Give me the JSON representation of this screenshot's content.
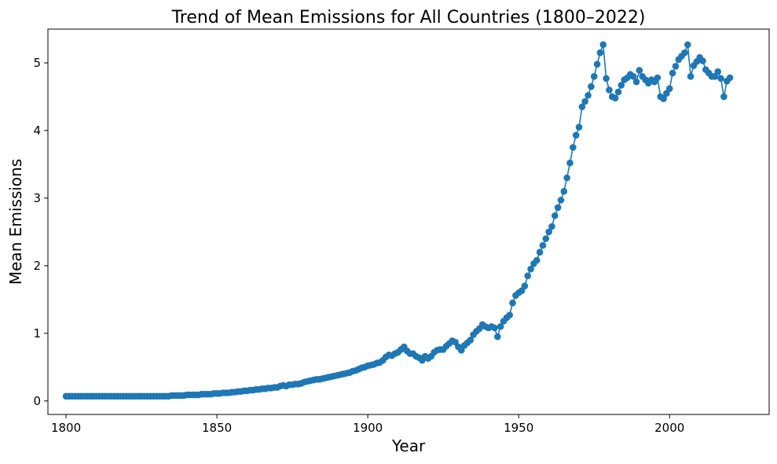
{
  "chart_data": {
    "type": "line",
    "title": "Trend of Mean Emissions for All Countries (1800–2022)",
    "xlabel": "Year",
    "ylabel": "Mean Emissions",
    "xlim": [
      1794,
      2033
    ],
    "ylim": [
      -0.2,
      5.5
    ],
    "xticks": [
      1800,
      1850,
      1900,
      1950,
      2000
    ],
    "yticks": [
      0,
      1,
      2,
      3,
      4,
      5
    ],
    "grid": false,
    "legend": "none",
    "color": "#1f77b4",
    "marker": "circle",
    "series": [
      {
        "x_start": 1800,
        "x_end": 2022,
        "values": [
          0.07,
          0.07,
          0.07,
          0.07,
          0.07,
          0.07,
          0.07,
          0.07,
          0.07,
          0.07,
          0.07,
          0.07,
          0.07,
          0.07,
          0.07,
          0.07,
          0.07,
          0.07,
          0.07,
          0.07,
          0.07,
          0.07,
          0.07,
          0.07,
          0.07,
          0.07,
          0.07,
          0.07,
          0.07,
          0.07,
          0.07,
          0.07,
          0.07,
          0.07,
          0.07,
          0.08,
          0.08,
          0.08,
          0.08,
          0.08,
          0.09,
          0.09,
          0.09,
          0.09,
          0.09,
          0.1,
          0.1,
          0.1,
          0.1,
          0.11,
          0.11,
          0.11,
          0.12,
          0.12,
          0.12,
          0.13,
          0.13,
          0.14,
          0.14,
          0.15,
          0.15,
          0.16,
          0.16,
          0.17,
          0.17,
          0.18,
          0.18,
          0.19,
          0.19,
          0.2,
          0.2,
          0.22,
          0.23,
          0.22,
          0.24,
          0.24,
          0.25,
          0.25,
          0.26,
          0.28,
          0.29,
          0.3,
          0.31,
          0.32,
          0.32,
          0.33,
          0.34,
          0.35,
          0.36,
          0.37,
          0.38,
          0.39,
          0.4,
          0.41,
          0.42,
          0.44,
          0.45,
          0.47,
          0.49,
          0.5,
          0.52,
          0.53,
          0.54,
          0.56,
          0.57,
          0.6,
          0.65,
          0.68,
          0.67,
          0.7,
          0.72,
          0.76,
          0.8,
          0.74,
          0.7,
          0.7,
          0.66,
          0.64,
          0.6,
          0.66,
          0.63,
          0.66,
          0.72,
          0.75,
          0.76,
          0.76,
          0.81,
          0.85,
          0.89,
          0.87,
          0.8,
          0.75,
          0.82,
          0.86,
          0.9,
          0.98,
          1.03,
          1.07,
          1.13,
          1.1,
          1.08,
          1.1,
          1.08,
          0.95,
          1.1,
          1.18,
          1.23,
          1.27,
          1.45,
          1.56,
          1.6,
          1.63,
          1.7,
          1.85,
          1.95,
          2.03,
          2.08,
          2.2,
          2.3,
          2.4,
          2.5,
          2.58,
          2.74,
          2.86,
          2.97,
          3.1,
          3.3,
          3.52,
          3.75,
          3.93,
          4.05,
          4.35,
          4.43,
          4.52,
          4.65,
          4.8,
          4.98,
          5.15,
          5.27,
          4.77,
          4.6,
          4.5,
          4.48,
          4.57,
          4.67,
          4.75,
          4.78,
          4.83,
          4.8,
          4.72,
          4.89,
          4.8,
          4.75,
          4.7,
          4.75,
          4.72,
          4.78,
          4.5,
          4.47,
          4.55,
          4.62,
          4.85,
          4.95,
          5.05,
          5.1,
          5.15,
          5.27,
          4.8,
          4.96,
          5.02,
          5.08,
          5.03,
          4.9,
          4.85,
          4.8,
          4.8,
          4.87,
          4.77,
          4.5,
          4.73,
          4.78
        ]
      }
    ]
  }
}
